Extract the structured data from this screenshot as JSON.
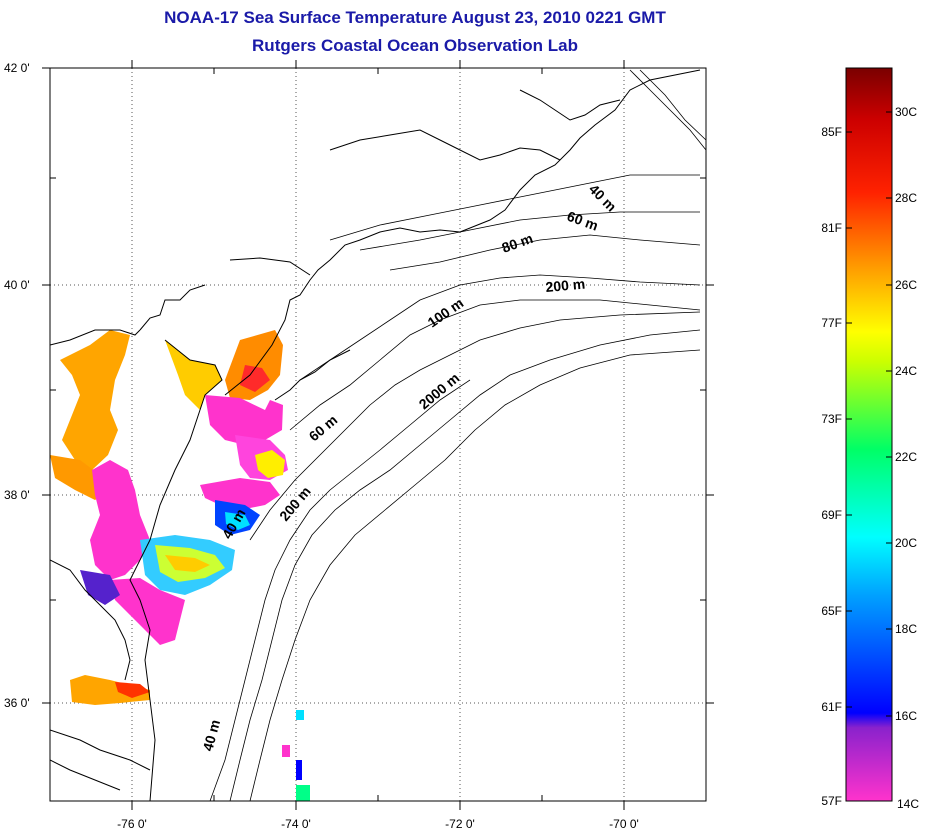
{
  "title": "NOAA-17 Sea Surface Temperature August 23, 2010 0221 GMT",
  "subtitle": "Rutgers Coastal Ocean Observation Lab",
  "map": {
    "lon_range": [
      -77,
      -69
    ],
    "lat_range": [
      35,
      42
    ],
    "lon_ticks": [
      "-76 0'",
      "-74 0'",
      "-72 0'",
      "-70 0'"
    ],
    "lat_ticks": [
      "42 0'",
      "40 0'",
      "38 0'",
      "36 0'"
    ],
    "isobath_labels": [
      "40 m",
      "60 m",
      "80 m",
      "200 m",
      "100 m",
      "2000 m",
      "60 m",
      "200 m",
      "40 m",
      "40 m"
    ]
  },
  "colorbar": {
    "f_labels": [
      "85F",
      "81F",
      "77F",
      "73F",
      "69F",
      "65F",
      "61F",
      "57F"
    ],
    "c_labels": [
      "30C",
      "28C",
      "26C",
      "24C",
      "22C",
      "20C",
      "18C",
      "16C",
      "14C"
    ],
    "colors": [
      "#ff33cc",
      "#7a22cc",
      "#0000ff",
      "#00a0ff",
      "#00ffff",
      "#00ff66",
      "#99ff00",
      "#ffff00",
      "#ff9900",
      "#ff2a00",
      "#cc0000",
      "#7a0000"
    ]
  }
}
